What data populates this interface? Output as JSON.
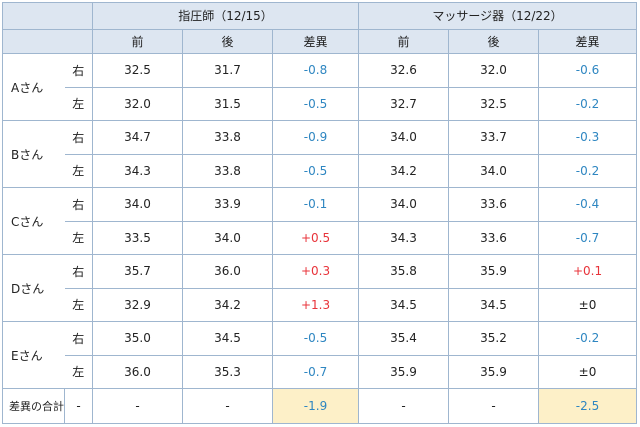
{
  "header": {
    "group1_title": "指圧師（12/15）",
    "group2_title": "マッサージ器（12/22）",
    "sub": {
      "before": "前",
      "after": "後",
      "diff": "差異"
    }
  },
  "rows": [
    {
      "person": "Aさん",
      "right": {
        "g1": {
          "before": "32.5",
          "after": "31.7",
          "diff": "-0.8"
        },
        "g2": {
          "before": "32.6",
          "after": "32.0",
          "diff": "-0.6"
        }
      },
      "left": {
        "g1": {
          "before": "32.0",
          "after": "31.5",
          "diff": "-0.5"
        },
        "g2": {
          "before": "32.7",
          "after": "32.5",
          "diff": "-0.2"
        }
      }
    },
    {
      "person": "Bさん",
      "right": {
        "g1": {
          "before": "34.7",
          "after": "33.8",
          "diff": "-0.9"
        },
        "g2": {
          "before": "34.0",
          "after": "33.7",
          "diff": "-0.3"
        }
      },
      "left": {
        "g1": {
          "before": "34.3",
          "after": "33.8",
          "diff": "-0.5"
        },
        "g2": {
          "before": "34.2",
          "after": "34.0",
          "diff": "-0.2"
        }
      }
    },
    {
      "person": "Cさん",
      "right": {
        "g1": {
          "before": "34.0",
          "after": "33.9",
          "diff": "-0.1"
        },
        "g2": {
          "before": "34.0",
          "after": "33.6",
          "diff": "-0.4"
        }
      },
      "left": {
        "g1": {
          "before": "33.5",
          "after": "34.0",
          "diff": "+0.5"
        },
        "g2": {
          "before": "34.3",
          "after": "33.6",
          "diff": "-0.7"
        }
      }
    },
    {
      "person": "Dさん",
      "right": {
        "g1": {
          "before": "35.7",
          "after": "36.0",
          "diff": "+0.3"
        },
        "g2": {
          "before": "35.8",
          "after": "35.9",
          "diff": "+0.1"
        }
      },
      "left": {
        "g1": {
          "before": "32.9",
          "after": "34.2",
          "diff": "+1.3"
        },
        "g2": {
          "before": "34.5",
          "after": "34.5",
          "diff": "±0"
        }
      }
    },
    {
      "person": "Eさん",
      "right": {
        "g1": {
          "before": "35.0",
          "after": "34.5",
          "diff": "-0.5"
        },
        "g2": {
          "before": "35.4",
          "after": "35.2",
          "diff": "-0.2"
        }
      },
      "left": {
        "g1": {
          "before": "36.0",
          "after": "35.3",
          "diff": "-0.7"
        },
        "g2": {
          "before": "35.9",
          "after": "35.9",
          "diff": "±0"
        }
      }
    }
  ],
  "side_labels": {
    "right": "右",
    "left": "左"
  },
  "total": {
    "label": "差異の合計",
    "side": "-",
    "g1": {
      "before": "-",
      "after": "-",
      "diff": "-1.9"
    },
    "g2": {
      "before": "-",
      "after": "-",
      "diff": "-2.5"
    }
  },
  "colors": {
    "negative": "#2e86c1",
    "positive": "#e8333a",
    "header_bg": "#dde6f1",
    "total_highlight": "#fdf0c8",
    "border": "#9fb6cf"
  }
}
